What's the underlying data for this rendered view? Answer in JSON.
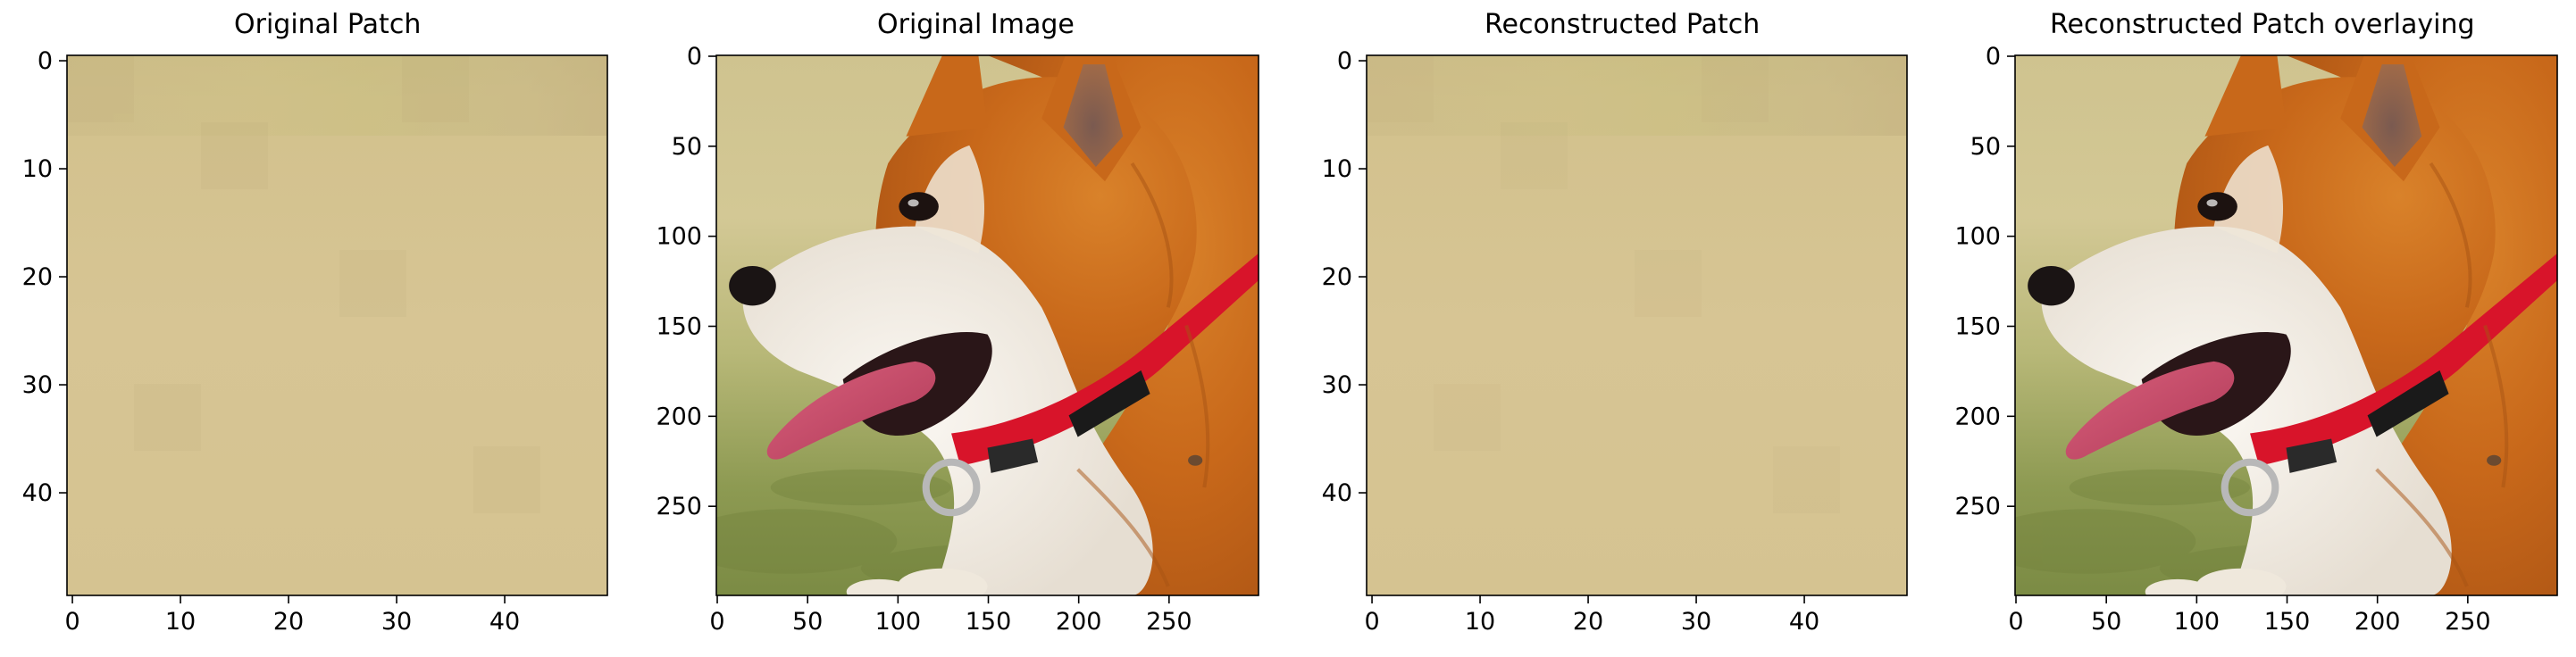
{
  "panels": [
    {
      "id": "original-patch",
      "title": "Original Patch",
      "image": "plain-beige-patch",
      "x_ticks": [
        0,
        10,
        20,
        30,
        40
      ],
      "y_ticks": [
        0,
        10,
        20,
        30,
        40
      ],
      "x_range": [
        -0.5,
        49.5
      ],
      "y_range": [
        -0.5,
        49.5
      ]
    },
    {
      "id": "original-image",
      "title": "Original Image",
      "image": "corgi-photo",
      "x_ticks": [
        0,
        50,
        100,
        150,
        200,
        250
      ],
      "y_ticks": [
        0,
        50,
        100,
        150,
        200,
        250
      ],
      "x_range": [
        -0.5,
        299.5
      ],
      "y_range": [
        -0.5,
        299.5
      ]
    },
    {
      "id": "reconstructed-patch",
      "title": "Reconstructed Patch",
      "image": "plain-beige-patch",
      "x_ticks": [
        0,
        10,
        20,
        30,
        40
      ],
      "y_ticks": [
        0,
        10,
        20,
        30,
        40
      ],
      "x_range": [
        -0.5,
        49.5
      ],
      "y_range": [
        -0.5,
        49.5
      ]
    },
    {
      "id": "reconstructed-overlay",
      "title": "Reconstructed Patch overlaying",
      "image": "corgi-photo",
      "x_ticks": [
        0,
        50,
        100,
        150,
        200,
        250
      ],
      "y_ticks": [
        0,
        50,
        100,
        150,
        200,
        250
      ],
      "x_range": [
        -0.5,
        299.5
      ],
      "y_range": [
        -0.5,
        299.5
      ]
    }
  ],
  "colors": {
    "patch_base": "#d6c492",
    "patch_dark": "#c8b682",
    "grass_light": "#cfc890",
    "grass_dark": "#7d8a45",
    "fur_orange": "#d2741c",
    "fur_white": "#f2ede6",
    "collar_red": "#d8142a",
    "tongue_pink": "#c94c6a"
  }
}
